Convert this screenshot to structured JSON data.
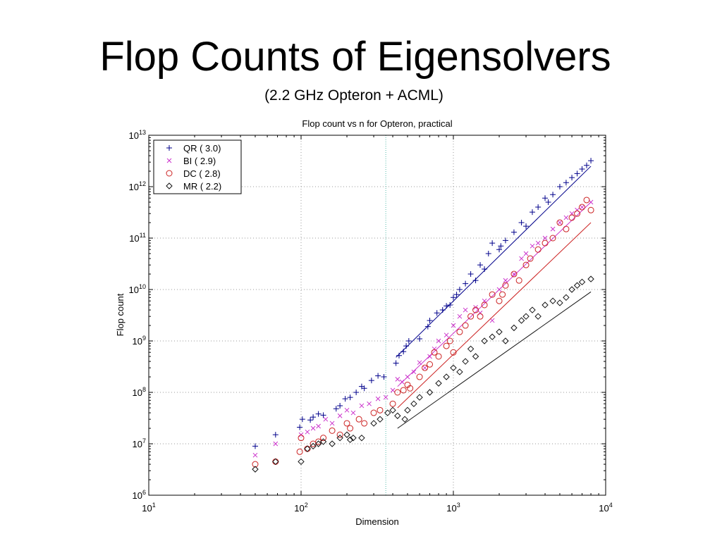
{
  "slide": {
    "title": "Flop Counts of Eigensolvers",
    "subtitle": "(2.2 GHz Opteron + ACML)"
  },
  "chart_data": {
    "type": "scatter",
    "title": "Flop count vs n for Opteron, practical",
    "xlabel": "Dimension",
    "ylabel": "Flop count",
    "x_scale": "log",
    "y_scale": "log",
    "xlim": [
      10,
      10000
    ],
    "ylim": [
      1000000,
      10000000000000
    ],
    "grid": true,
    "legend_position": "top-left",
    "x_ticks": [
      {
        "value": 10,
        "base": "10",
        "exp": "1"
      },
      {
        "value": 100,
        "base": "10",
        "exp": "2"
      },
      {
        "value": 1000,
        "base": "10",
        "exp": "3"
      },
      {
        "value": 10000,
        "base": "10",
        "exp": "4"
      }
    ],
    "y_ticks": [
      {
        "value": 1000000,
        "base": "10",
        "exp": "6"
      },
      {
        "value": 10000000,
        "base": "10",
        "exp": "7"
      },
      {
        "value": 100000000,
        "base": "10",
        "exp": "8"
      },
      {
        "value": 1000000000,
        "base": "10",
        "exp": "9"
      },
      {
        "value": 10000000000,
        "base": "10",
        "exp": "10"
      },
      {
        "value": 100000000000,
        "base": "10",
        "exp": "11"
      },
      {
        "value": 1000000000000,
        "base": "10",
        "exp": "12"
      },
      {
        "value": 10000000000000,
        "base": "10",
        "exp": "13"
      }
    ],
    "x_markers": [
      360
    ],
    "series": [
      {
        "name": "QR  ( 3.0)",
        "marker": "plus",
        "color": "#00008b",
        "fit": [
          [
            420,
            480000000
          ],
          [
            8000,
            2500000000000
          ]
        ],
        "x": [
          50,
          68,
          98,
          102,
          115,
          120,
          130,
          140,
          170,
          180,
          195,
          210,
          230,
          250,
          260,
          290,
          320,
          350,
          420,
          440,
          470,
          490,
          510,
          600,
          680,
          700,
          780,
          850,
          900,
          950,
          1000,
          1050,
          1100,
          1200,
          1300,
          1400,
          1500,
          1600,
          1700,
          1800,
          2000,
          2050,
          2200,
          2500,
          2800,
          3000,
          3300,
          3600,
          4000,
          4200,
          4500,
          5000,
          5500,
          6000,
          6500,
          7000,
          7500,
          8000
        ],
        "y": [
          9000000,
          15000000,
          21000000,
          30000000,
          29000000,
          33000000,
          38000000,
          36000000,
          48000000,
          55000000,
          75000000,
          80000000,
          100000000,
          130000000,
          120000000,
          170000000,
          210000000,
          200000000,
          370000000,
          520000000,
          620000000,
          800000000,
          1000000000,
          1100000000,
          1900000000,
          2500000000,
          3500000000,
          4000000000,
          4800000000,
          5000000000,
          7000000000,
          8000000000,
          10000000000,
          13000000000,
          20000000000,
          15000000000,
          30000000000,
          25000000000,
          50000000000,
          80000000000,
          60000000000,
          70000000000,
          90000000000,
          130000000000,
          200000000000,
          170000000000,
          320000000000,
          400000000000,
          600000000000,
          500000000000,
          700000000000,
          1000000000000,
          1200000000000,
          1500000000000,
          1800000000000,
          2200000000000,
          2600000000000,
          3200000000000
        ]
      },
      {
        "name": "BI  ( 2.9)",
        "marker": "x",
        "color": "#cc33cc",
        "fit": [
          [
            430,
            130000000
          ],
          [
            8000,
            500000000000
          ]
        ],
        "x": [
          50,
          68,
          100,
          110,
          120,
          130,
          145,
          160,
          180,
          200,
          220,
          250,
          280,
          320,
          360,
          400,
          430,
          460,
          500,
          550,
          600,
          650,
          700,
          750,
          800,
          900,
          1000,
          1100,
          1200,
          1400,
          1500,
          1600,
          1800,
          2000,
          2200,
          2500,
          2800,
          3000,
          3300,
          3600,
          4000,
          4500,
          5000,
          5500,
          6000,
          6500,
          7000,
          8000
        ],
        "y": [
          6000000,
          10000000,
          15000000,
          17000000,
          20000000,
          22000000,
          30000000,
          25000000,
          35000000,
          45000000,
          40000000,
          55000000,
          60000000,
          75000000,
          80000000,
          110000000,
          180000000,
          160000000,
          200000000,
          250000000,
          380000000,
          300000000,
          500000000,
          700000000,
          1000000000,
          1300000000,
          2000000000,
          3000000000,
          4000000000,
          4500000000,
          3500000000,
          6000000000,
          2500000000,
          10000000000,
          15000000000,
          20000000000,
          40000000000,
          50000000000,
          70000000000,
          80000000000,
          100000000000,
          150000000000,
          200000000000,
          250000000000,
          300000000000,
          350000000000,
          400000000000,
          500000000000
        ]
      },
      {
        "name": "DC  ( 2.8)",
        "marker": "circle",
        "color": "#cc2222",
        "fit": [
          [
            430,
            50000000
          ],
          [
            8000,
            200000000000
          ]
        ],
        "x": [
          50,
          68,
          98,
          100,
          110,
          120,
          130,
          140,
          160,
          180,
          200,
          210,
          240,
          260,
          300,
          330,
          400,
          430,
          470,
          500,
          520,
          600,
          650,
          700,
          750,
          800,
          900,
          950,
          1000,
          1100,
          1200,
          1300,
          1400,
          1500,
          1600,
          1800,
          2000,
          2100,
          2200,
          2500,
          2700,
          3000,
          3200,
          3600,
          4000,
          4500,
          5000,
          5500,
          6000,
          6500,
          7000,
          7500,
          8000
        ],
        "y": [
          4000000,
          4500000,
          7000000,
          13000000,
          8000000,
          10000000,
          11000000,
          13000000,
          18000000,
          15000000,
          25000000,
          20000000,
          30000000,
          25000000,
          40000000,
          45000000,
          60000000,
          100000000,
          110000000,
          140000000,
          120000000,
          200000000,
          300000000,
          350000000,
          600000000,
          500000000,
          800000000,
          1000000000,
          600000000,
          1500000000,
          2000000000,
          3000000000,
          4000000000,
          3000000000,
          5000000000,
          8000000000,
          6000000000,
          8000000000,
          12000000000,
          20000000000,
          15000000000,
          30000000000,
          40000000000,
          60000000000,
          80000000000,
          100000000000,
          200000000000,
          150000000000,
          250000000000,
          300000000000,
          400000000000,
          550000000000,
          350000000000
        ]
      },
      {
        "name": "MR  ( 2.2)",
        "marker": "diamond",
        "color": "#111111",
        "fit": [
          [
            430,
            20000000
          ],
          [
            8000,
            9000000000
          ]
        ],
        "x": [
          50,
          68,
          100,
          110,
          120,
          130,
          140,
          160,
          180,
          200,
          210,
          220,
          250,
          300,
          330,
          370,
          400,
          430,
          480,
          500,
          550,
          600,
          700,
          800,
          900,
          1000,
          1100,
          1200,
          1300,
          1400,
          1600,
          1800,
          2000,
          2200,
          2500,
          2800,
          3000,
          3300,
          3600,
          4000,
          4500,
          5000,
          5500,
          6000,
          6500,
          7000,
          8000
        ],
        "y": [
          3200000,
          4500000,
          4500000,
          8000000,
          9000000,
          10000000,
          11000000,
          10000000,
          13000000,
          15000000,
          12000000,
          13000000,
          13000000,
          25000000,
          30000000,
          40000000,
          45000000,
          35000000,
          30000000,
          45000000,
          60000000,
          80000000,
          100000000,
          150000000,
          200000000,
          300000000,
          250000000,
          400000000,
          700000000,
          500000000,
          1000000000,
          1200000000,
          1500000000,
          1000000000,
          1800000000,
          2500000000,
          3000000000,
          4000000000,
          3000000000,
          5000000000,
          6000000000,
          5500000000,
          7000000000,
          10000000000,
          12000000000,
          14000000000,
          16000000000
        ]
      }
    ]
  }
}
